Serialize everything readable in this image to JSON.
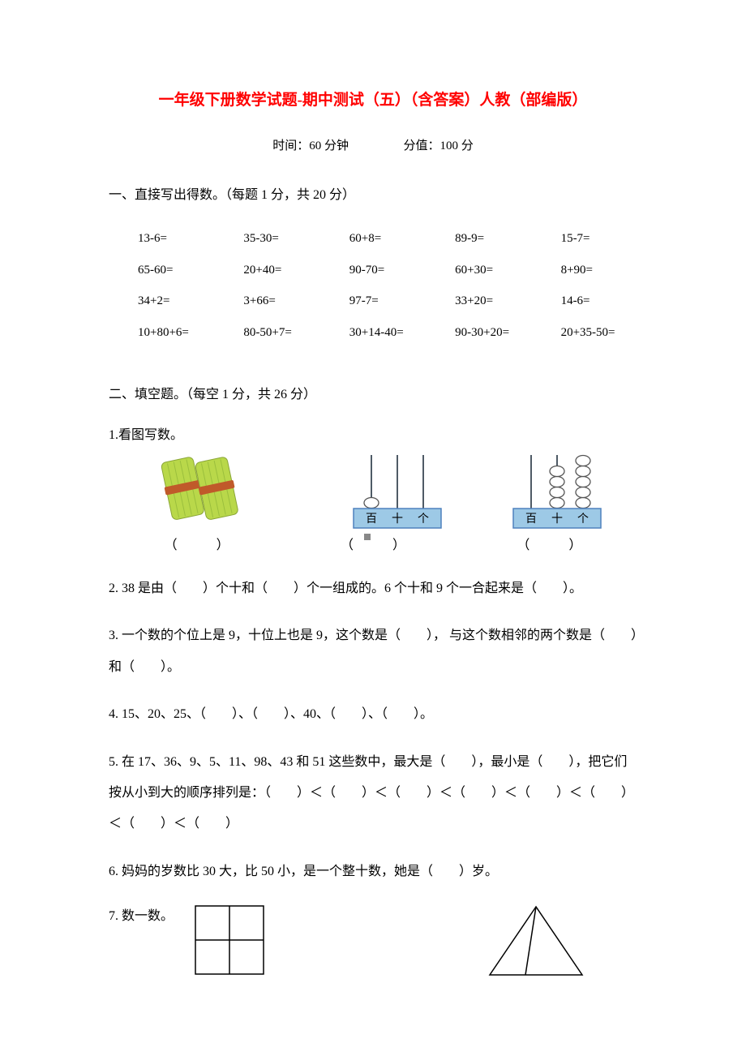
{
  "title": "一年级下册数学试题-期中测试（五）（含答案）人教（部编版）",
  "title_color": "#ff0000",
  "meta": {
    "time_label": "时间：60 分钟",
    "score_label": "分值：100 分"
  },
  "section1": {
    "heading": "一、直接写出得数。（每题 1 分，共 20 分）",
    "rows": [
      [
        "13-6=",
        "35-30=",
        "60+8=",
        "89-9=",
        "15-7="
      ],
      [
        "65-60=",
        "20+40=",
        "90-70=",
        "60+30=",
        "8+90="
      ],
      [
        "34+2=",
        "3+66=",
        "97-7=",
        "33+20=",
        "14-6="
      ],
      [
        "10+80+6=",
        "80-50+7=",
        "30+14-40=",
        "90-30+20=",
        "20+35-50="
      ]
    ]
  },
  "section2": {
    "heading": "二、填空题。（每空 1 分，共 26 分）",
    "q1_label": "1.看图写数。",
    "q1_blanks": [
      "（　　　）",
      "（　　　）",
      "（　　　）"
    ],
    "q2": "2. 38 是由（　　）个十和（　　）个一组成的。6 个十和 9 个一合起来是（　　）。",
    "q3": "3.  一个数的个位上是 9，十位上也是 9，这个数是（　　），  与这个数相邻的两个数是（　　）和（　　）。",
    "q4": "4. 15、20、25、（　　）、（　　）、40、（　　）、（　　）。",
    "q5": "5.  在 17、36、9、5、11、98、43 和 51 这些数中，最大是（　　），最小是（　　），把它们按从小到大的顺序排列是：（　　）＜（　　）＜（　　）＜（　　）＜（　　）＜（　　）＜（　　）＜（　　）",
    "q6": "6.  妈妈的岁数比 30 大，比 50 小，是一个整十数，她是（　　）岁。",
    "q7_label": "7.  数一数。"
  },
  "figures": {
    "sticks": {
      "bundle_color": "#b9d84a",
      "tie_color": "#c05a2a"
    },
    "abacus1": {
      "base_fill": "#9dc9e6",
      "base_stroke": "#4f81bd",
      "rod_stroke": "#4f5b66",
      "bead_fill": "#ffffff",
      "bead_stroke": "#555555",
      "labels": [
        "百",
        "十",
        "个"
      ],
      "beads": [
        1,
        0,
        0
      ]
    },
    "abacus2": {
      "base_fill": "#9dc9e6",
      "base_stroke": "#4f81bd",
      "rod_stroke": "#4f5b66",
      "bead_fill": "#ffffff",
      "bead_stroke": "#555555",
      "labels": [
        "百",
        "十",
        "个"
      ],
      "beads": [
        0,
        4,
        5
      ]
    },
    "grid2x2": {
      "stroke": "#000000",
      "size": 84
    },
    "triangle": {
      "stroke": "#000000",
      "width": 120,
      "height": 88
    }
  }
}
